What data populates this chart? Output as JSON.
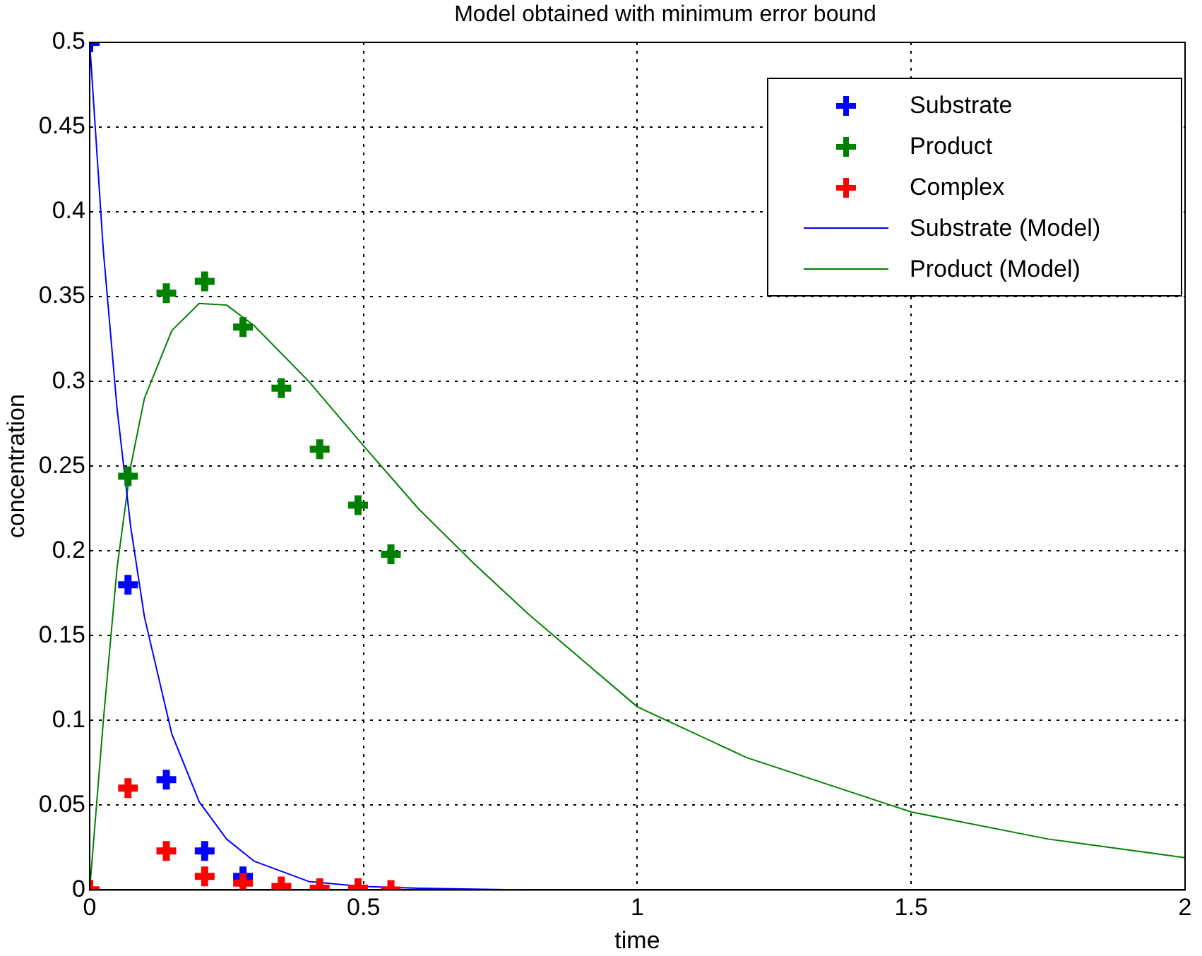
{
  "chart_data": {
    "type": "scatter",
    "title": "Model obtained with minimum error bound",
    "xlabel": "time",
    "ylabel": "concentration",
    "xlim": [
      0,
      2
    ],
    "xticks": [
      0,
      0.5,
      1,
      1.5,
      2
    ],
    "ylim": [
      0,
      0.5
    ],
    "yticks": [
      0,
      0.05,
      0.1,
      0.15,
      0.2,
      0.25,
      0.3,
      0.35,
      0.4,
      0.45,
      0.5
    ],
    "grid": true,
    "legend": "top right",
    "series": [
      {
        "name": "Substrate",
        "type": "scatter",
        "marker": "cross",
        "color": "#0000ff",
        "x": [
          0,
          0.07,
          0.14,
          0.21,
          0.28
        ],
        "values": [
          0.5,
          0.18,
          0.065,
          0.023,
          0.008
        ]
      },
      {
        "name": "Product",
        "type": "scatter",
        "marker": "cross",
        "color": "#008000",
        "x": [
          0,
          0.07,
          0.14,
          0.21,
          0.28,
          0.35,
          0.42,
          0.49,
          0.55
        ],
        "values": [
          0,
          0.244,
          0.352,
          0.359,
          0.332,
          0.296,
          0.26,
          0.227,
          0.198
        ]
      },
      {
        "name": "Complex",
        "type": "scatter",
        "marker": "cross",
        "color": "#ff0000",
        "x": [
          0,
          0.07,
          0.14,
          0.21,
          0.28,
          0.35,
          0.42,
          0.49,
          0.55
        ],
        "values": [
          0,
          0.06,
          0.023,
          0.008,
          0.004,
          0.002,
          0.001,
          0.001,
          0
        ]
      },
      {
        "name": "Substrate (Model)",
        "type": "line",
        "marker": "none",
        "color": "#0000ff",
        "x": [
          0,
          0.025,
          0.05,
          0.075,
          0.1,
          0.15,
          0.2,
          0.25,
          0.3,
          0.4,
          0.5,
          0.6,
          0.8
        ],
        "values": [
          0.5,
          0.377,
          0.284,
          0.214,
          0.161,
          0.092,
          0.052,
          0.03,
          0.017,
          0.005,
          0.002,
          0.001,
          0
        ]
      },
      {
        "name": "Product (Model)",
        "type": "line",
        "marker": "none",
        "color": "#008000",
        "x": [
          0,
          0.025,
          0.05,
          0.075,
          0.1,
          0.15,
          0.2,
          0.25,
          0.3,
          0.4,
          0.5,
          0.6,
          0.7,
          0.8,
          1,
          1.2,
          1.5,
          1.75,
          2
        ],
        "values": [
          0,
          0.1,
          0.19,
          0.25,
          0.29,
          0.33,
          0.346,
          0.345,
          0.333,
          0.3,
          0.262,
          0.225,
          0.193,
          0.163,
          0.108,
          0.078,
          0.046,
          0.03,
          0.019
        ]
      }
    ]
  }
}
